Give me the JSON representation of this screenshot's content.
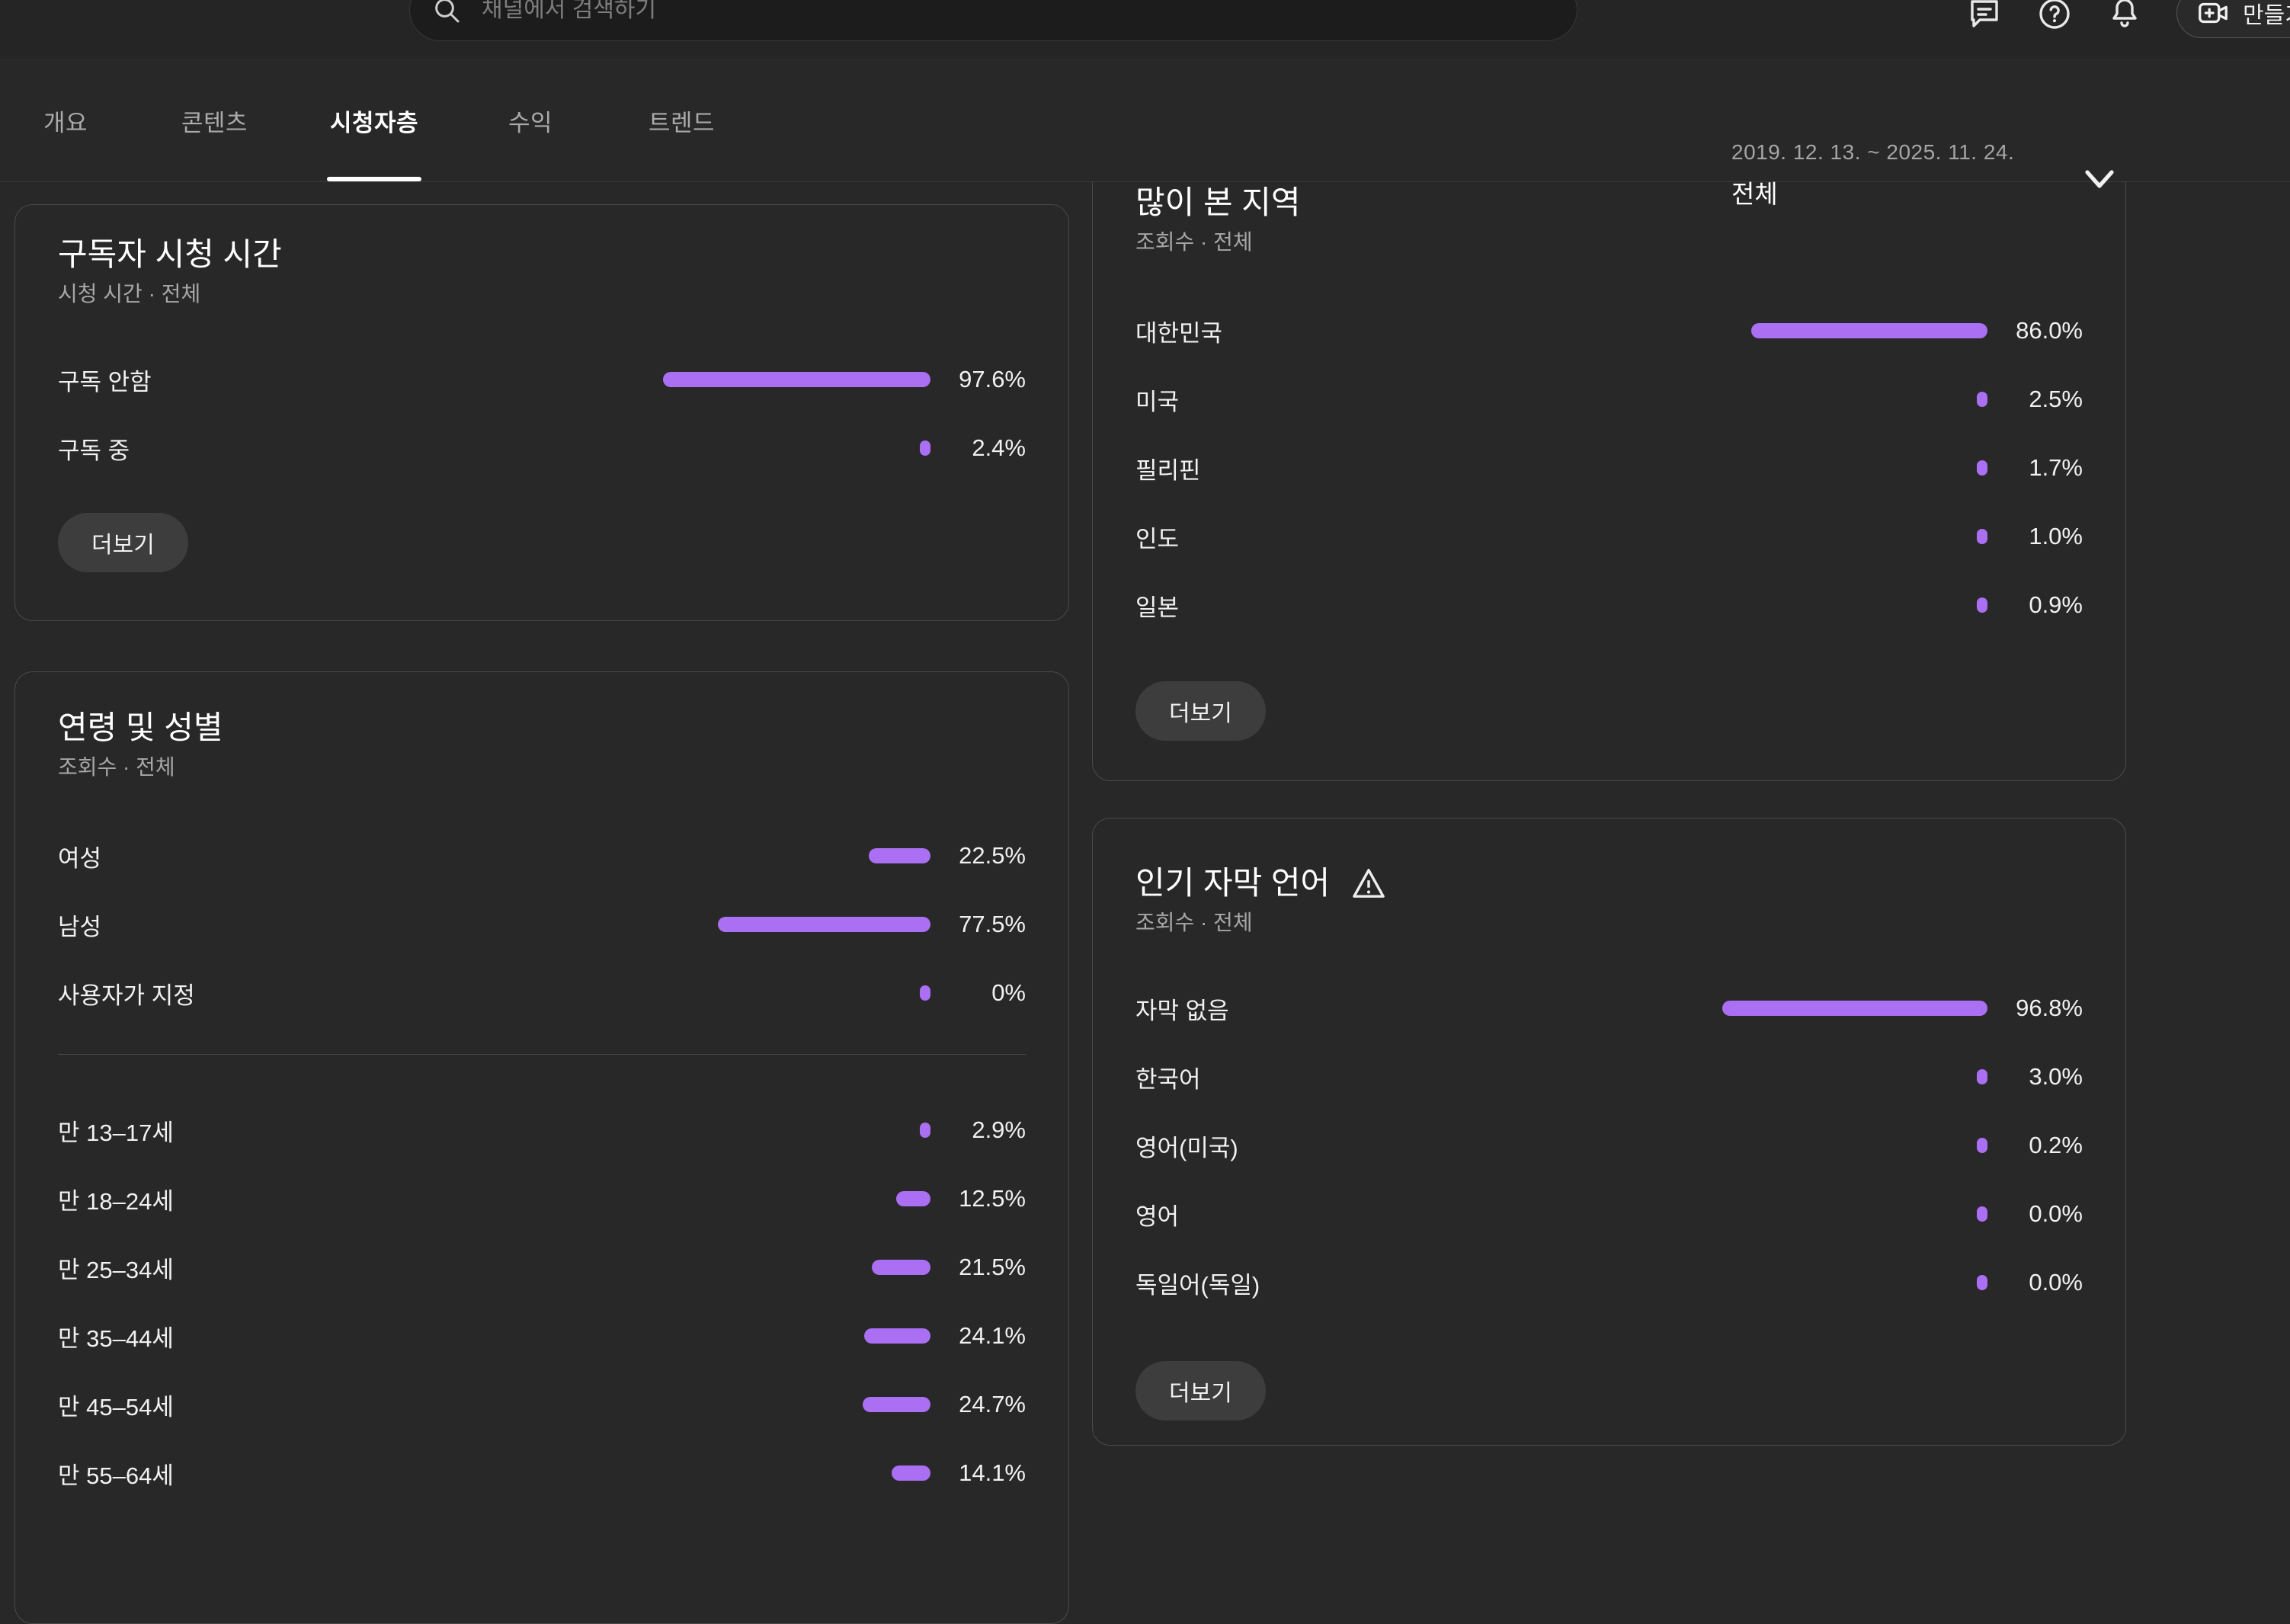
{
  "theme": {
    "accent": "#aa6ff2"
  },
  "topbar": {
    "search_placeholder": "채널에서 검색하기",
    "create_label": "만들기"
  },
  "tabs": [
    "개요",
    "콘텐츠",
    "시청자층",
    "수익",
    "트렌드"
  ],
  "date_filter": {
    "range": "2019. 12. 13. ~ 2025. 11. 24.",
    "selected": "전체"
  },
  "cards": {
    "subscribers": {
      "title": "구독자 시청 시간",
      "subtitle": "시청 시간 · 전체",
      "more_label": "더보기",
      "rows": [
        {
          "label": "구독 안함",
          "value": "97.6%",
          "pct": 97.6
        },
        {
          "label": "구독 중",
          "value": "2.4%",
          "pct": 2.4
        }
      ]
    },
    "age_gender": {
      "title": "연령 및 성별",
      "subtitle": "조회수 · 전체",
      "gender_rows": [
        {
          "label": "여성",
          "value": "22.5%",
          "pct": 22.5
        },
        {
          "label": "남성",
          "value": "77.5%",
          "pct": 77.5
        },
        {
          "label": "사용자가 지정",
          "value": "0%",
          "pct": 0
        }
      ],
      "age_rows": [
        {
          "label": "만 13–17세",
          "value": "2.9%",
          "pct": 2.9
        },
        {
          "label": "만 18–24세",
          "value": "12.5%",
          "pct": 12.5
        },
        {
          "label": "만 25–34세",
          "value": "21.5%",
          "pct": 21.5
        },
        {
          "label": "만 35–44세",
          "value": "24.1%",
          "pct": 24.1
        },
        {
          "label": "만 45–54세",
          "value": "24.7%",
          "pct": 24.7
        },
        {
          "label": "만 55–64세",
          "value": "14.1%",
          "pct": 14.1
        }
      ]
    },
    "geography": {
      "title": "많이 본 지역",
      "subtitle": "조회수 · 전체",
      "more_label": "더보기",
      "rows": [
        {
          "label": "대한민국",
          "value": "86.0%",
          "pct": 86.0
        },
        {
          "label": "미국",
          "value": "2.5%",
          "pct": 2.5
        },
        {
          "label": "필리핀",
          "value": "1.7%",
          "pct": 1.7
        },
        {
          "label": "인도",
          "value": "1.0%",
          "pct": 1.0
        },
        {
          "label": "일본",
          "value": "0.9%",
          "pct": 0.9
        }
      ]
    },
    "subtitles": {
      "title": "인기 자막 언어",
      "subtitle": "조회수 · 전체",
      "more_label": "더보기",
      "rows": [
        {
          "label": "자막 없음",
          "value": "96.8%",
          "pct": 96.8
        },
        {
          "label": "한국어",
          "value": "3.0%",
          "pct": 3.0
        },
        {
          "label": "영어(미국)",
          "value": "0.2%",
          "pct": 0.2
        },
        {
          "label": "영어",
          "value": "0.0%",
          "pct": 0
        },
        {
          "label": "독일어(독일)",
          "value": "0.0%",
          "pct": 0
        }
      ]
    }
  }
}
